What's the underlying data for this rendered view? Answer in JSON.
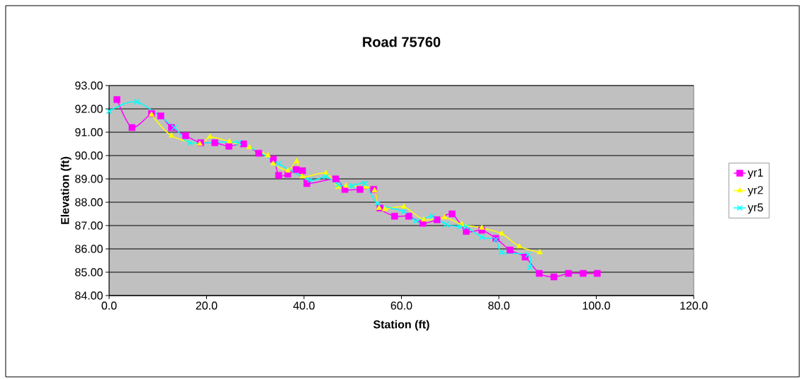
{
  "chart_data": {
    "type": "line",
    "title": "Road 75760",
    "xlabel": "Station (ft)",
    "ylabel": "Elevation (ft)",
    "xlim": [
      0,
      120
    ],
    "ylim": [
      84,
      93
    ],
    "xticks": [
      {
        "value": 0,
        "label": "0.0"
      },
      {
        "value": 20,
        "label": "20.0"
      },
      {
        "value": 40,
        "label": "40.0"
      },
      {
        "value": 60,
        "label": "60.0"
      },
      {
        "value": 80,
        "label": "80.0"
      },
      {
        "value": 100,
        "label": "100.0"
      },
      {
        "value": 120,
        "label": "120.0"
      }
    ],
    "yticks": [
      {
        "value": 84,
        "label": "84.00"
      },
      {
        "value": 85,
        "label": "85.00"
      },
      {
        "value": 86,
        "label": "86.00"
      },
      {
        "value": 87,
        "label": "87.00"
      },
      {
        "value": 88,
        "label": "88.00"
      },
      {
        "value": 89,
        "label": "89.00"
      },
      {
        "value": 90,
        "label": "90.00"
      },
      {
        "value": 91,
        "label": "91.00"
      },
      {
        "value": 92,
        "label": "92.00"
      },
      {
        "value": 93,
        "label": "93.00"
      }
    ],
    "grid": "y",
    "legend": "right",
    "series": [
      {
        "name": "yr1",
        "color": "#ff00ff",
        "marker": "square",
        "x": [
          1.6,
          4.7,
          8.7,
          10.6,
          12.8,
          15.7,
          18.8,
          21.7,
          24.6,
          27.6,
          30.7,
          33.7,
          34.8,
          36.7,
          38.4,
          39.7,
          40.6,
          46.5,
          48.4,
          51.5,
          54.3,
          55.6,
          58.6,
          61.5,
          64.4,
          67.3,
          70.4,
          73.3,
          76.5,
          79.4,
          82.3,
          85.4,
          88.3,
          91.3,
          94.3,
          97.3,
          100.2
        ],
        "values": [
          92.4,
          91.2,
          91.8,
          91.7,
          91.2,
          90.85,
          90.55,
          90.55,
          90.4,
          90.5,
          90.1,
          89.85,
          89.15,
          89.2,
          89.4,
          89.35,
          88.8,
          89.0,
          88.55,
          88.55,
          88.55,
          87.75,
          87.4,
          87.4,
          87.1,
          87.25,
          87.5,
          86.75,
          86.8,
          86.45,
          85.95,
          85.65,
          84.95,
          84.8,
          84.95,
          84.95,
          84.95
        ]
      },
      {
        "name": "yr2",
        "color": "#ffff00",
        "marker": "triangle",
        "x": [
          8.7,
          12.8,
          18.6,
          20.7,
          24.7,
          28.8,
          32.6,
          33.7,
          36.7,
          38.5,
          39.7,
          44.5,
          47.0,
          48.6,
          52.8,
          54.5,
          55.4,
          56.6,
          60.5,
          64.6,
          68.8,
          72.4,
          76.5,
          80.6,
          84.2,
          88.4
        ],
        "values": [
          91.75,
          90.85,
          90.5,
          90.8,
          90.6,
          90.35,
          90.0,
          89.65,
          89.35,
          89.75,
          89.1,
          89.25,
          88.65,
          88.7,
          88.65,
          88.5,
          87.75,
          87.7,
          87.8,
          87.25,
          87.35,
          87.05,
          86.9,
          86.65,
          86.1,
          85.85
        ]
      },
      {
        "name": "yr5",
        "color": "#00ffff",
        "marker": "cross",
        "x": [
          0,
          5.7,
          13.4,
          16.6,
          26.6,
          34.8,
          41.2,
          44.5,
          47.1,
          49.9,
          52.5,
          55.1,
          60.5,
          63.0,
          66.3,
          69.2,
          71.9,
          73.3,
          76.5,
          79.4,
          80.6,
          86.0,
          86.4
        ],
        "values": [
          91.9,
          92.3,
          91.2,
          90.55,
          90.55,
          89.65,
          88.95,
          89.1,
          88.75,
          88.7,
          88.8,
          87.95,
          87.6,
          87.2,
          87.4,
          87.05,
          86.95,
          86.95,
          86.5,
          86.4,
          85.85,
          85.75,
          85.2
        ]
      }
    ]
  }
}
